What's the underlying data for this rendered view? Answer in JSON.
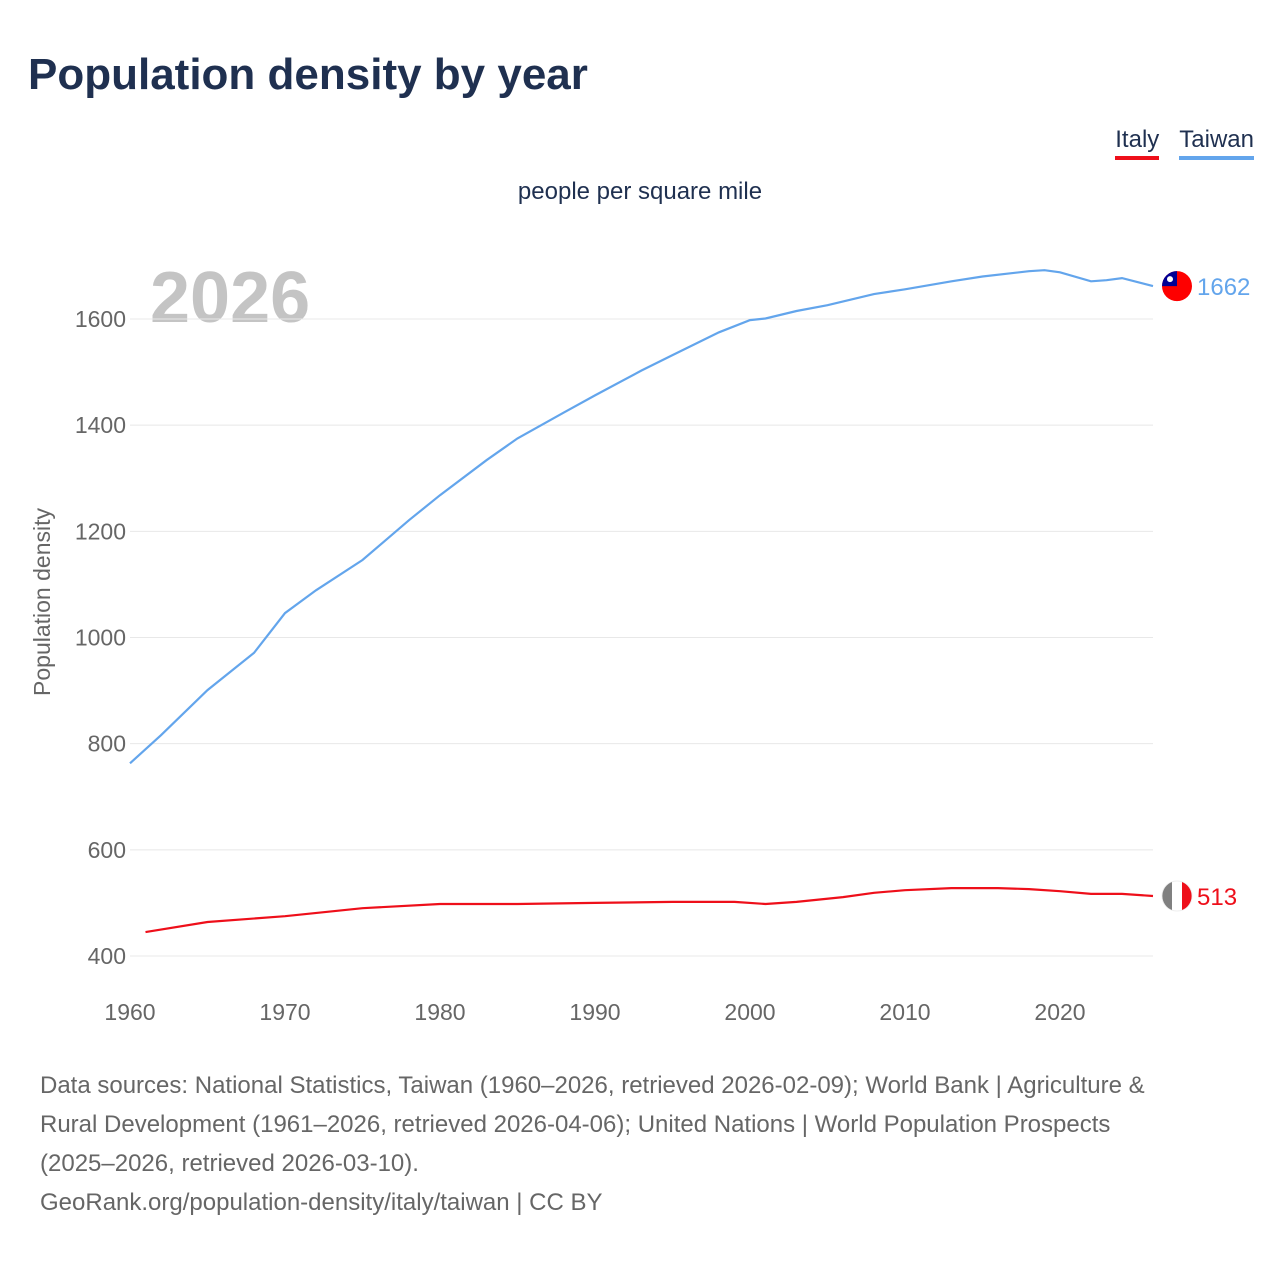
{
  "title": "Population density by year",
  "subtitle": "people per square mile",
  "legend": [
    {
      "name": "Italy",
      "color": "#ee0f1a"
    },
    {
      "name": "Taiwan",
      "color": "#63a5ec"
    }
  ],
  "source_lines": [
    "Data sources: National Statistics, Taiwan (1960–2026, retrieved 2026-02-09); World Bank | Agriculture &",
    "Rural Development (1961–2026, retrieved 2026-04-06); United Nations | World Population Prospects",
    "(2025–2026, retrieved 2026-03-10).",
    "GeoRank.org/population-density/italy/taiwan | CC BY"
  ],
  "chart_data": {
    "type": "line",
    "title": "Population density by year",
    "ylabel": "Population density",
    "xlabel": "",
    "year_watermark": "2026",
    "xlim": [
      1960,
      2026
    ],
    "ylim": [
      400,
      1700
    ],
    "xticks": [
      1960,
      1970,
      1980,
      1990,
      2000,
      2010,
      2020
    ],
    "yticks": [
      400,
      600,
      800,
      1000,
      1200,
      1400,
      1600
    ],
    "series": [
      {
        "name": "Taiwan",
        "color": "#63a5ec",
        "end_label": "1662",
        "x": [
          1960,
          1962,
          1965,
          1968,
          1970,
          1972,
          1975,
          1978,
          1980,
          1983,
          1985,
          1988,
          1990,
          1993,
          1995,
          1998,
          2000,
          2001,
          2003,
          2005,
          2008,
          2010,
          2013,
          2015,
          2018,
          2019,
          2020,
          2022,
          2023,
          2024,
          2026
        ],
        "y": [
          763,
          816,
          901,
          971,
          1046,
          1089,
          1146,
          1221,
          1268,
          1334,
          1375,
          1424,
          1456,
          1503,
          1532,
          1575,
          1598,
          1601,
          1615,
          1626,
          1647,
          1656,
          1671,
          1680,
          1690,
          1692,
          1688,
          1671,
          1673,
          1677,
          1662
        ]
      },
      {
        "name": "Italy",
        "color": "#ee0f1a",
        "end_label": "513",
        "x": [
          1961,
          1965,
          1970,
          1975,
          1980,
          1985,
          1990,
          1995,
          1999,
          2001,
          2003,
          2006,
          2008,
          2010,
          2013,
          2016,
          2018,
          2020,
          2022,
          2024,
          2026
        ],
        "y": [
          445,
          464,
          475,
          490,
          498,
          498,
          500,
          502,
          502,
          498,
          502,
          511,
          519,
          524,
          528,
          528,
          526,
          522,
          517,
          517,
          513
        ]
      }
    ]
  }
}
